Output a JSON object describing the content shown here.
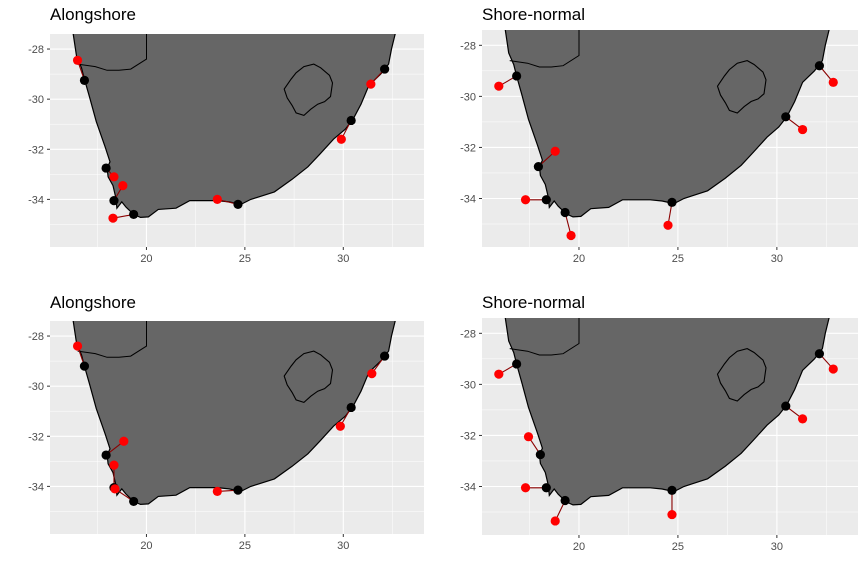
{
  "colors": {
    "panel_bg": "#ebebeb",
    "grid_major": "#ffffff",
    "land": "#666666",
    "coast": "#000000",
    "original_point": "#000000",
    "shifted_point": "#ff0000",
    "connector": "#8b0000"
  },
  "chart_data": [
    {
      "type": "map",
      "title": "Alongshore",
      "xlim": [
        15.1,
        34.1
      ],
      "ylim": [
        -35.9,
        -27.4
      ],
      "x_ticks": [
        20,
        25,
        30
      ],
      "y_ticks": [
        -28,
        -30,
        -32,
        -34
      ],
      "x_tick_labels": [
        "20",
        "25",
        "30"
      ],
      "y_tick_labels": [
        "-28",
        "-30",
        "-32",
        "-34"
      ],
      "pairs": [
        {
          "from": [
            16.85,
            -29.25
          ],
          "to": [
            16.5,
            -28.45
          ]
        },
        {
          "from": [
            17.95,
            -32.75
          ],
          "to": [
            18.35,
            -33.1
          ]
        },
        {
          "from": [
            18.35,
            -34.05
          ],
          "to": [
            18.8,
            -33.45
          ]
        },
        {
          "from": [
            19.35,
            -34.6
          ],
          "to": [
            18.3,
            -34.75
          ]
        },
        {
          "from": [
            24.65,
            -34.2
          ],
          "to": [
            23.6,
            -34.0
          ]
        },
        {
          "from": [
            30.4,
            -30.85
          ],
          "to": [
            29.9,
            -31.6
          ]
        },
        {
          "from": [
            32.1,
            -28.8
          ],
          "to": [
            31.4,
            -29.4
          ]
        }
      ]
    },
    {
      "type": "map",
      "title": "Shore-normal",
      "xlim": [
        15.1,
        34.1
      ],
      "ylim": [
        -35.9,
        -27.4
      ],
      "x_ticks": [
        20,
        25,
        30
      ],
      "y_ticks": [
        -28,
        -30,
        -32,
        -34
      ],
      "x_tick_labels": [
        "20",
        "25",
        "30"
      ],
      "y_tick_labels": [
        "-28",
        "-30",
        "-32",
        "-34"
      ],
      "pairs": [
        {
          "from": [
            16.85,
            -29.2
          ],
          "to": [
            15.95,
            -29.6
          ]
        },
        {
          "from": [
            17.95,
            -32.75
          ],
          "to": [
            18.8,
            -32.15
          ]
        },
        {
          "from": [
            18.35,
            -34.05
          ],
          "to": [
            17.3,
            -34.05
          ]
        },
        {
          "from": [
            19.3,
            -34.55
          ],
          "to": [
            19.6,
            -35.45
          ]
        },
        {
          "from": [
            24.7,
            -34.15
          ],
          "to": [
            24.5,
            -35.05
          ]
        },
        {
          "from": [
            30.45,
            -30.8
          ],
          "to": [
            31.3,
            -31.3
          ]
        },
        {
          "from": [
            32.15,
            -28.8
          ],
          "to": [
            32.85,
            -29.45
          ]
        }
      ]
    },
    {
      "type": "map",
      "title": "Alongshore",
      "xlim": [
        15.1,
        34.1
      ],
      "ylim": [
        -35.9,
        -27.4
      ],
      "x_ticks": [
        20,
        25,
        30
      ],
      "y_ticks": [
        -28,
        -30,
        -32,
        -34
      ],
      "x_tick_labels": [
        "20",
        "25",
        "30"
      ],
      "y_tick_labels": [
        "-28",
        "-30",
        "-32",
        "-34"
      ],
      "pairs": [
        {
          "from": [
            16.85,
            -29.2
          ],
          "to": [
            16.5,
            -28.4
          ]
        },
        {
          "from": [
            17.95,
            -32.75
          ],
          "to": [
            18.85,
            -32.2
          ]
        },
        {
          "from": [
            18.35,
            -34.05
          ],
          "to": [
            18.35,
            -33.15
          ]
        },
        {
          "from": [
            19.35,
            -34.6
          ],
          "to": [
            18.4,
            -34.1
          ]
        },
        {
          "from": [
            24.65,
            -34.15
          ],
          "to": [
            23.6,
            -34.2
          ]
        },
        {
          "from": [
            30.4,
            -30.85
          ],
          "to": [
            29.85,
            -31.6
          ]
        },
        {
          "from": [
            32.1,
            -28.8
          ],
          "to": [
            31.45,
            -29.5
          ]
        }
      ]
    },
    {
      "type": "map",
      "title": "Shore-normal",
      "xlim": [
        15.1,
        34.1
      ],
      "ylim": [
        -35.9,
        -27.4
      ],
      "x_ticks": [
        20,
        25,
        30
      ],
      "y_ticks": [
        -28,
        -30,
        -32,
        -34
      ],
      "x_tick_labels": [
        "20",
        "25",
        "30"
      ],
      "y_tick_labels": [
        "-28",
        "-30",
        "-32",
        "-34"
      ],
      "pairs": [
        {
          "from": [
            16.85,
            -29.2
          ],
          "to": [
            15.95,
            -29.6
          ]
        },
        {
          "from": [
            18.05,
            -32.75
          ],
          "to": [
            17.45,
            -32.05
          ]
        },
        {
          "from": [
            18.35,
            -34.05
          ],
          "to": [
            17.3,
            -34.05
          ]
        },
        {
          "from": [
            19.3,
            -34.55
          ],
          "to": [
            18.8,
            -35.35
          ]
        },
        {
          "from": [
            24.7,
            -34.15
          ],
          "to": [
            24.7,
            -35.1
          ]
        },
        {
          "from": [
            30.45,
            -30.85
          ],
          "to": [
            31.3,
            -31.35
          ]
        },
        {
          "from": [
            32.15,
            -28.8
          ],
          "to": [
            32.85,
            -29.4
          ]
        }
      ]
    }
  ]
}
